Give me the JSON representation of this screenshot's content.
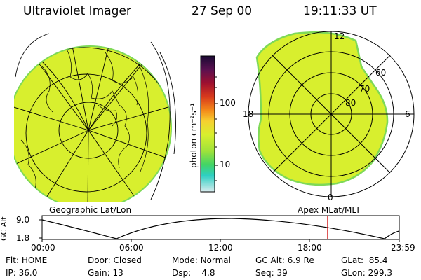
{
  "header": {
    "title": "Ultraviolet Imager",
    "date": "27 Sep 00",
    "time": "19:11:33 UT"
  },
  "colors": {
    "fill": "#d8ef2e",
    "fill_edge": "#7ed957",
    "line": "#000000",
    "marker": "#cc0000"
  },
  "colorbar": {
    "unit_label": "photon cm⁻²s⁻¹",
    "ticks": [
      "100",
      "10"
    ],
    "stops": [
      "#1a0a33",
      "#5a1050",
      "#9e1030",
      "#d83a1c",
      "#f48a1a",
      "#f6d030",
      "#d8ef2e",
      "#9fe23a",
      "#42d466",
      "#2ecfc2",
      "#d9ecef"
    ]
  },
  "polar_plot": {
    "noon_label": "12",
    "midnight_label": "0",
    "dusk_label": "18",
    "dawn_label": "6",
    "lat_labels": [
      "60",
      "70",
      "80"
    ]
  },
  "map_labels": {
    "left": "Geographic Lat/Lon",
    "right": "Apex MLat/MLT"
  },
  "altitude_plot": {
    "axis_label": "GC Alt",
    "y_ticks": [
      "9.0",
      "1.8"
    ],
    "x_ticks": [
      "00:00",
      "06:00",
      "12:00",
      "18:00",
      "23:59"
    ],
    "current_time_fraction": 0.7995
  },
  "status": {
    "row1": [
      {
        "key": "Flt:",
        "value": "HOME"
      },
      {
        "key": "Door:",
        "value": "Closed"
      },
      {
        "key": "Mode:",
        "value": "Normal"
      },
      {
        "key": "GC Alt:",
        "value": "6.9 Re"
      },
      {
        "key": "GLat:",
        "value": "85.4"
      }
    ],
    "row2": [
      {
        "key": "IP:",
        "value": "36.0"
      },
      {
        "key": "Gain:",
        "value": "13"
      },
      {
        "key": "Dsp:",
        "value": "4.8"
      },
      {
        "key": "Seq:",
        "value": "39"
      },
      {
        "key": "GLon:",
        "value": "299.3"
      }
    ]
  }
}
